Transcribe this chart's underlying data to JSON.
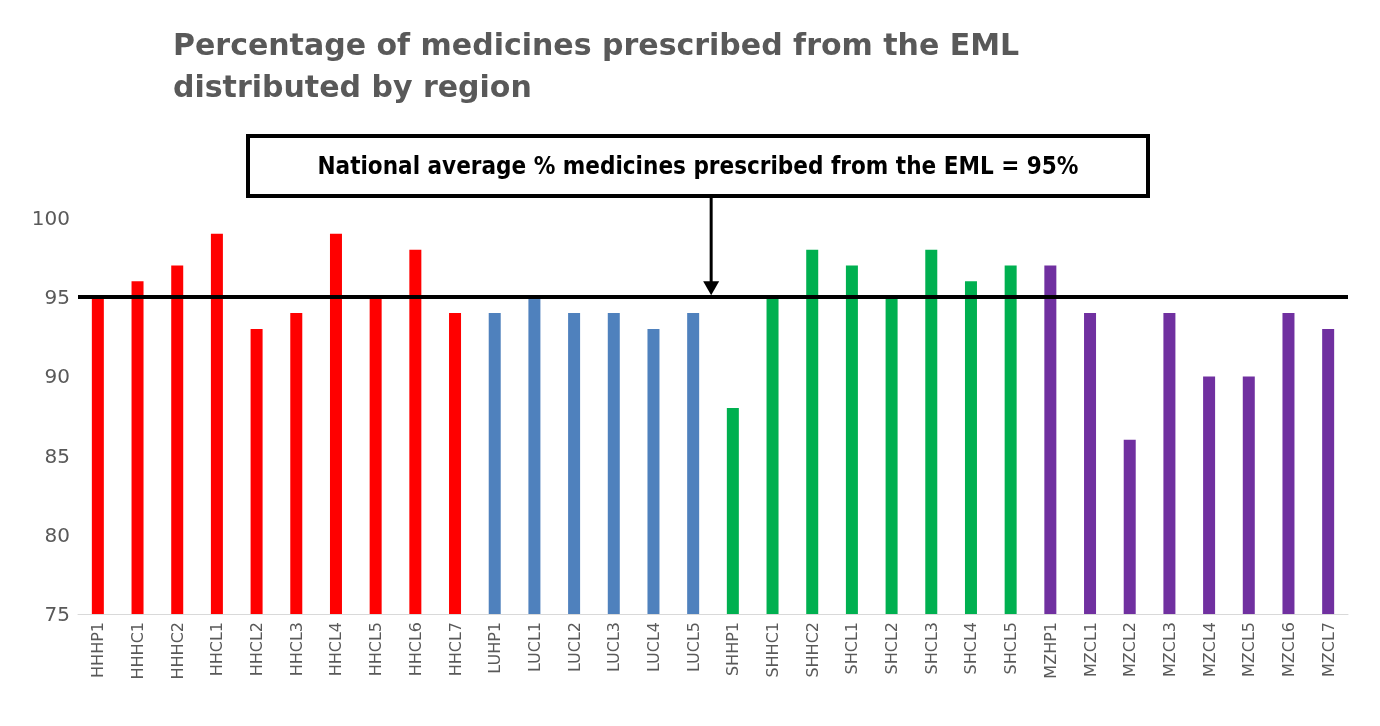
{
  "chart_data": {
    "type": "bar",
    "title": "Percentage of medicines prescribed from the EML\ndistributed by region",
    "categories": [
      "HHHP1",
      "HHHC1",
      "HHHC2",
      "HHCL1",
      "HHCL2",
      "HHCL3",
      "HHCL4",
      "HHCL5",
      "HHCL6",
      "HHCL7",
      "LUHP1",
      "LUCL1",
      "LUCL2",
      "LUCL3",
      "LUCL4",
      "LUCL5",
      "SHHP1",
      "SHHC1",
      "SHHC2",
      "SHCL1",
      "SHCL2",
      "SHCL3",
      "SHCL4",
      "SHCL5",
      "MZHP1",
      "MZCL1",
      "MZCL2",
      "MZCL3",
      "MZCL4",
      "MZCL5",
      "MZCL6",
      "MZCL7"
    ],
    "values": [
      95,
      96,
      97,
      99,
      93,
      94,
      99,
      95,
      98,
      94,
      94,
      95,
      94,
      94,
      93,
      94,
      88,
      95,
      98,
      97,
      95,
      98,
      96,
      97,
      97,
      94,
      86,
      94,
      90,
      90,
      94,
      93
    ],
    "colors": [
      "#ff0000",
      "#ff0000",
      "#ff0000",
      "#ff0000",
      "#ff0000",
      "#ff0000",
      "#ff0000",
      "#ff0000",
      "#ff0000",
      "#ff0000",
      "#4f81bd",
      "#4f81bd",
      "#4f81bd",
      "#4f81bd",
      "#4f81bd",
      "#4f81bd",
      "#00b050",
      "#00b050",
      "#00b050",
      "#00b050",
      "#00b050",
      "#00b050",
      "#00b050",
      "#00b050",
      "#7030a0",
      "#7030a0",
      "#7030a0",
      "#7030a0",
      "#7030a0",
      "#7030a0",
      "#7030a0",
      "#7030a0"
    ],
    "ylim": [
      75,
      100
    ],
    "yticks": [
      75,
      80,
      85,
      90,
      95,
      100
    ],
    "grid": false,
    "ref_lines": [
      {
        "axis": "y",
        "value": 95,
        "label": "National average % medicines prescribed from the EML = 95%",
        "color": "#000000"
      }
    ]
  }
}
